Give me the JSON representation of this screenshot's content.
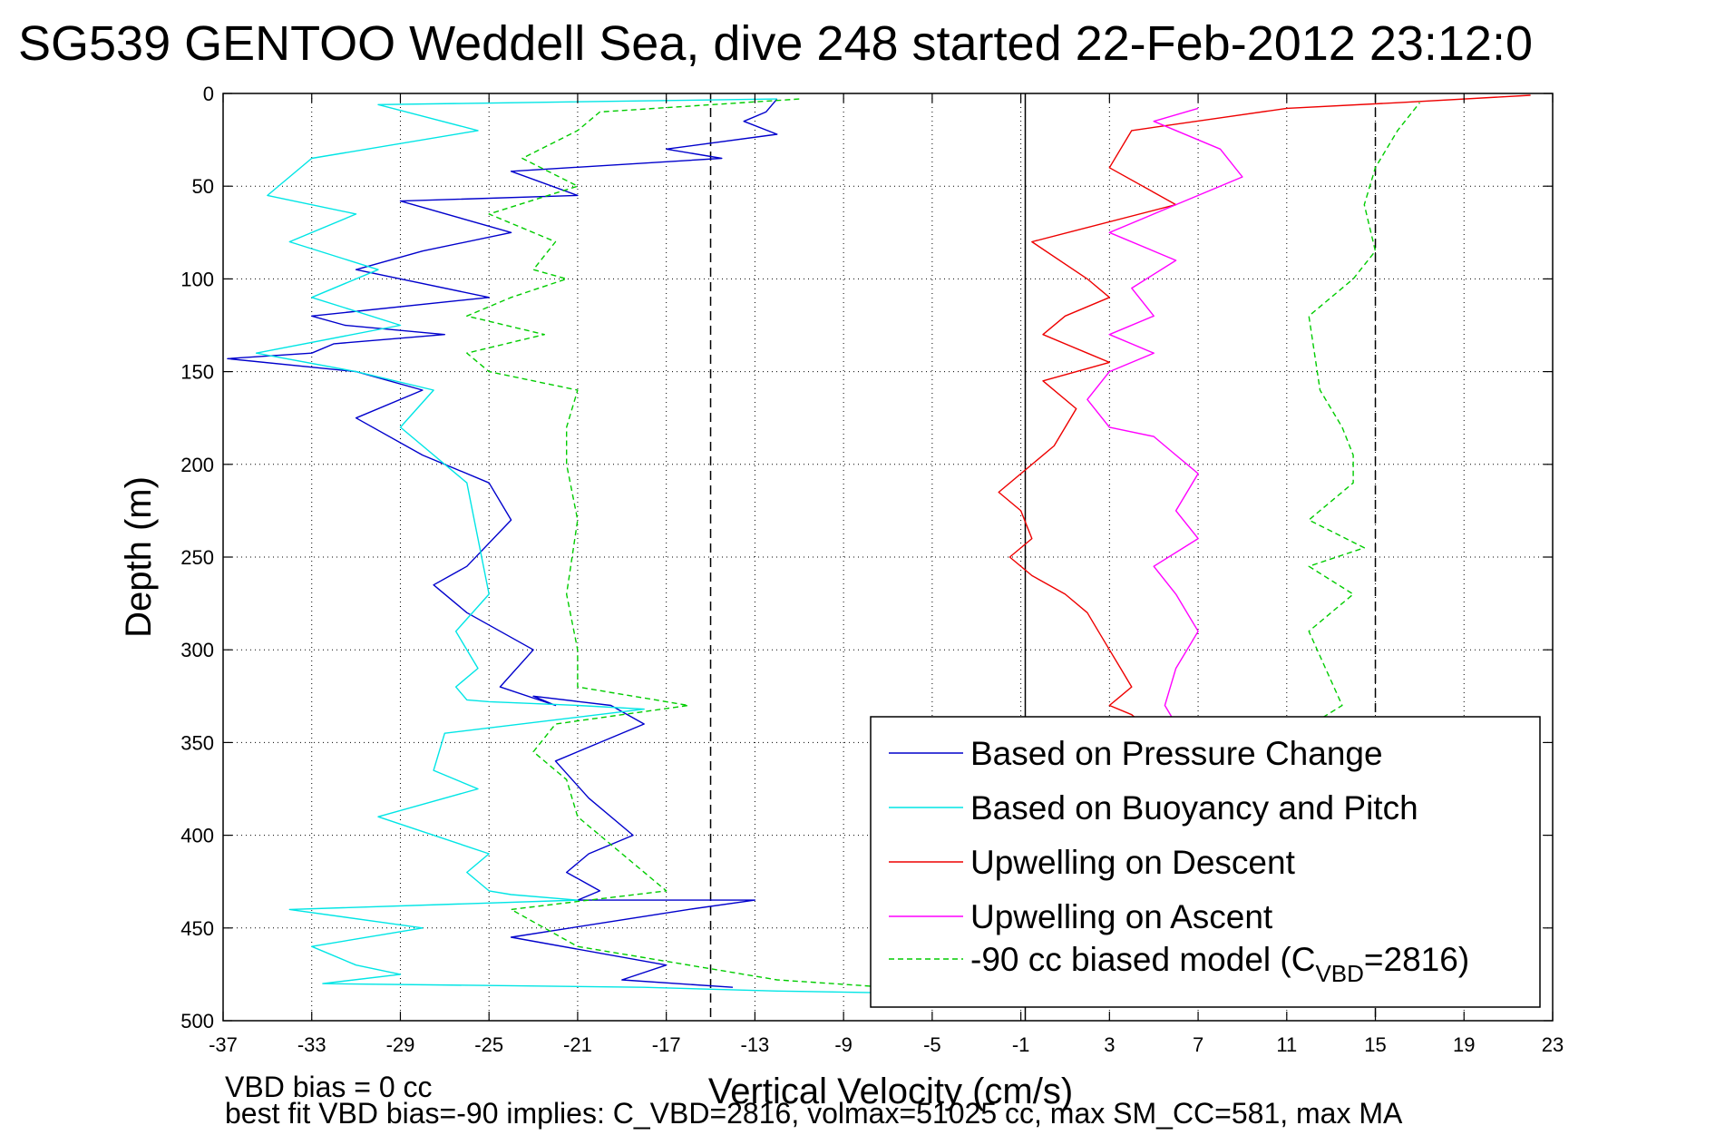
{
  "title": "SG539 GENTOO Weddell Sea, dive 248 started 22-Feb-2012 23:12:0",
  "footnotes": {
    "line1": "VBD bias = 0 cc",
    "line2": "best fit VBD bias=-90 implies: C_VBD=2816, volmax=51025 cc, max SM_CC=581, max MA"
  },
  "legend": {
    "placement": "lower-right",
    "entries": [
      {
        "label": "Based on Pressure Change"
      },
      {
        "label": "Based on Buoyancy and Pitch"
      },
      {
        "label": "Upwelling on Descent"
      },
      {
        "label": "Upwelling on Ascent"
      },
      {
        "label": "-90 cc biased model (C",
        "sub": "VBD",
        "suffix": "=2816)"
      }
    ]
  },
  "chart_data": {
    "type": "line",
    "title": "SG539 GENTOO Weddell Sea, dive 248 started 22-Feb-2012 23:12:0",
    "xlabel": "Vertical Velocity (cm/s)",
    "ylabel": "Depth (m)",
    "xlim": [
      -37,
      23
    ],
    "ylim": [
      0,
      500
    ],
    "y_reversed": true,
    "grid": true,
    "xticks": [
      -37,
      -33,
      -29,
      -25,
      -21,
      -17,
      -13,
      -9,
      -5,
      -1,
      3,
      7,
      11,
      15,
      19,
      23
    ],
    "yticks": [
      0,
      50,
      100,
      150,
      200,
      250,
      300,
      350,
      400,
      450,
      500
    ],
    "reference_lines": [
      {
        "x": -15,
        "style": "dashed",
        "color": "#000000"
      },
      {
        "x": -0.8,
        "style": "solid",
        "color": "#000000"
      },
      {
        "x": 15,
        "style": "dashed",
        "color": "#000000"
      }
    ],
    "series": [
      {
        "name": "Based on Pressure Change",
        "color": "#0000cc",
        "style": "solid",
        "x": [
          -12,
          -12.5,
          -13.5,
          -12,
          -17,
          -14.5,
          -24,
          -21,
          -29,
          -24,
          -28,
          -31,
          -25,
          -33,
          -31.5,
          -27,
          -32,
          -33,
          -36.8,
          -31,
          -28,
          -31,
          -28,
          -25,
          -24,
          -26,
          -27.5,
          -26,
          -23,
          -24.5,
          -22,
          -23,
          -19.5,
          -18,
          -22,
          -20.5,
          -18.5,
          -20.5,
          -21.5,
          -20,
          -21,
          -13,
          -16,
          -24,
          -17,
          -19,
          -14
        ],
        "y": [
          3,
          10,
          15,
          22,
          30,
          35,
          42,
          55,
          58,
          75,
          85,
          95,
          110,
          120,
          125,
          130,
          135,
          140,
          143,
          150,
          160,
          175,
          195,
          210,
          230,
          255,
          265,
          280,
          300,
          320,
          330,
          325,
          330,
          340,
          360,
          380,
          400,
          410,
          420,
          430,
          435,
          435,
          440,
          455,
          470,
          478,
          482
        ]
      },
      {
        "name": "Based on Buoyancy and Pitch",
        "color": "#00e5e5",
        "style": "solid",
        "x": [
          -12,
          -30,
          -25.5,
          -33,
          -35,
          -31,
          -34,
          -30,
          -33,
          -29,
          -35.5,
          -31,
          -27.5,
          -29,
          -26,
          -25.5,
          -25,
          -26.5,
          -25.5,
          -26.5,
          -26,
          -25,
          -21,
          -18,
          -27,
          -27.5,
          -25.5,
          -30,
          -25,
          -26,
          -25,
          -24,
          -21,
          -34,
          -28,
          -33,
          -31,
          -29,
          -32.5,
          -18,
          -12,
          -7
        ],
        "y": [
          3,
          6,
          20,
          35,
          55,
          65,
          80,
          95,
          110,
          125,
          140,
          150,
          160,
          180,
          210,
          240,
          270,
          290,
          310,
          320,
          327,
          328,
          330,
          332,
          345,
          365,
          375,
          390,
          410,
          420,
          430,
          432,
          435,
          440,
          450,
          460,
          470,
          475,
          480,
          482,
          484,
          485
        ]
      },
      {
        "name": "Upwelling on Descent",
        "color": "#ee0000",
        "style": "solid",
        "x": [
          22,
          16,
          11,
          4,
          3,
          6,
          -0.5,
          2,
          3,
          1,
          0,
          2,
          3,
          0,
          1.5,
          0.5,
          -2,
          -1,
          -0.5,
          -1.5,
          -0.5,
          1,
          2,
          2.5,
          3,
          3.5,
          4,
          3.5,
          3,
          4,
          4.5
        ],
        "y": [
          1,
          5,
          8,
          20,
          40,
          60,
          80,
          100,
          110,
          120,
          130,
          140,
          145,
          155,
          170,
          190,
          215,
          225,
          240,
          250,
          260,
          270,
          280,
          290,
          300,
          310,
          320,
          325,
          330,
          335,
          340
        ]
      },
      {
        "name": "Upwelling on Ascent",
        "color": "#ff00ff",
        "style": "solid",
        "x": [
          7,
          5,
          8,
          9,
          6,
          3,
          6,
          4,
          5,
          3,
          5,
          3,
          2,
          3,
          5,
          6,
          7,
          6,
          7,
          5,
          6,
          7,
          6,
          5.5,
          6
        ],
        "y": [
          8,
          15,
          30,
          45,
          60,
          75,
          90,
          105,
          120,
          130,
          140,
          150,
          165,
          180,
          185,
          195,
          205,
          225,
          240,
          255,
          270,
          290,
          310,
          330,
          340
        ]
      },
      {
        "name": "-90 cc biased model (C_VBD=2816)",
        "color": "#00cc00",
        "style": "dashed",
        "x": [
          -11,
          -20,
          -21,
          -23.5,
          -21,
          -25,
          -22,
          -23,
          -21.5,
          -24,
          -26,
          -22.5,
          -26,
          -25.5,
          -25,
          -21,
          -21.5,
          -21.5,
          -21,
          -21.5,
          -21,
          -21,
          -16,
          -22,
          -23,
          -21.5,
          -21,
          -19,
          -17,
          -24,
          -21,
          -12,
          -7,
          13.5,
          12,
          14,
          12,
          14.5,
          12,
          14,
          14,
          13.5,
          12.5,
          12,
          14,
          15,
          14.5,
          15,
          16,
          17
        ],
        "y": [
          3,
          10,
          20,
          35,
          50,
          65,
          80,
          95,
          100,
          110,
          120,
          130,
          140,
          145,
          150,
          160,
          180,
          200,
          230,
          270,
          300,
          320,
          330,
          340,
          355,
          370,
          390,
          410,
          430,
          440,
          460,
          478,
          482,
          330,
          290,
          270,
          255,
          245,
          230,
          210,
          195,
          180,
          160,
          120,
          100,
          85,
          60,
          40,
          20,
          5
        ]
      }
    ]
  }
}
